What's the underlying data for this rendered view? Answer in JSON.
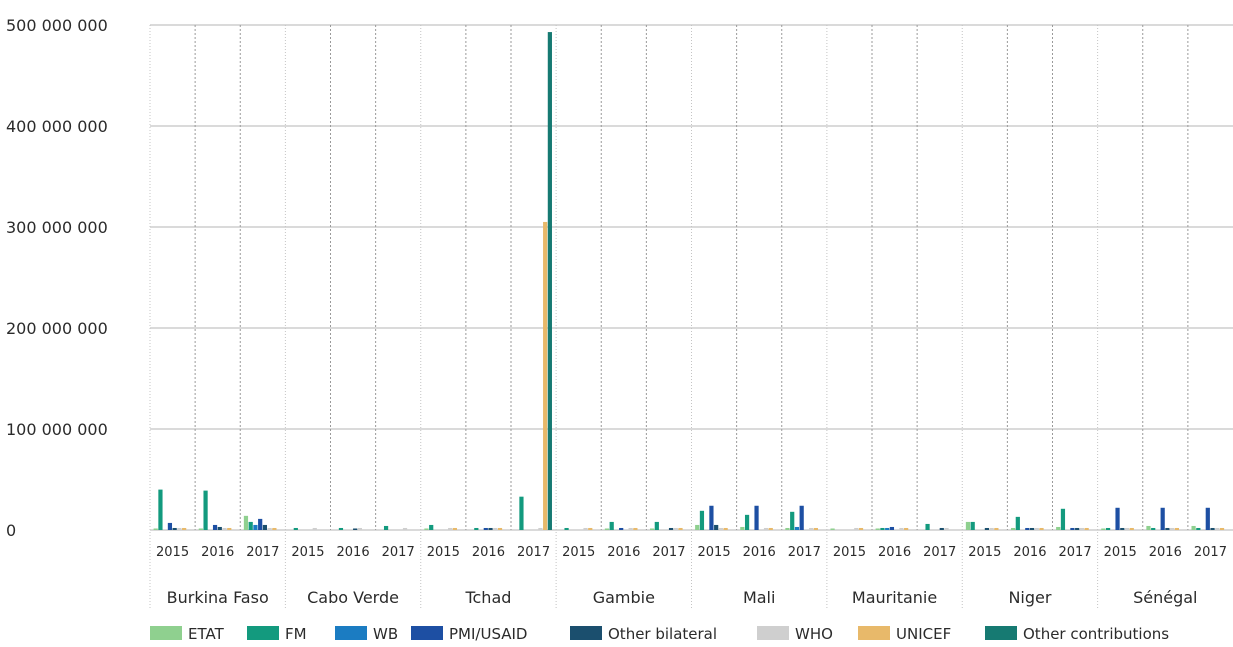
{
  "colors": {
    "grid_major": "#b5b5b5",
    "grid_dotted": "#9a9a9a",
    "text": "#2b2b2b"
  },
  "chart_data": {
    "type": "bar",
    "title": "",
    "xlabel": "",
    "ylabel": "",
    "ylim": [
      0,
      500000000
    ],
    "ytick_values": [
      0,
      100000000,
      200000000,
      300000000,
      400000000,
      500000000
    ],
    "ytick_labels": [
      "0",
      "100 000 000",
      "200 000 000",
      "300 000 000",
      "400 000 000",
      "500 000 000"
    ],
    "grid": true,
    "legend_position": "bottom",
    "countries": [
      "Burkina Faso",
      "Cabo Verde",
      "Tchad",
      "Gambie",
      "Mali",
      "Mauritanie",
      "Niger",
      "Sénégal"
    ],
    "years": [
      "2015",
      "2016",
      "2017"
    ],
    "series": [
      {
        "name": "ETAT",
        "color": "#8fd08f",
        "values": [
          [
            1500000,
            1500000,
            14000000
          ],
          [
            0,
            0,
            0
          ],
          [
            1500000,
            0,
            0
          ],
          [
            0,
            1500000,
            1500000
          ],
          [
            5000000,
            3000000,
            2000000
          ],
          [
            1500000,
            1500000,
            0
          ],
          [
            8000000,
            2000000,
            3000000
          ],
          [
            1500000,
            4000000,
            4000000
          ]
        ]
      },
      {
        "name": "FM",
        "color": "#139a7e",
        "values": [
          [
            40000000,
            39000000,
            8000000
          ],
          [
            2000000,
            2000000,
            4000000
          ],
          [
            5000000,
            2000000,
            33000000
          ],
          [
            2000000,
            8000000,
            8000000
          ],
          [
            19000000,
            15000000,
            18000000
          ],
          [
            0,
            2000000,
            6000000
          ],
          [
            8000000,
            13000000,
            21000000
          ],
          [
            2000000,
            2000000,
            2000000
          ]
        ]
      },
      {
        "name": "WB",
        "color": "#1b7cc2",
        "values": [
          [
            0,
            0,
            5000000
          ],
          [
            0,
            0,
            0
          ],
          [
            0,
            0,
            0
          ],
          [
            0,
            0,
            0
          ],
          [
            0,
            0,
            3000000
          ],
          [
            0,
            2000000,
            0
          ],
          [
            0,
            0,
            0
          ],
          [
            0,
            0,
            0
          ]
        ]
      },
      {
        "name": "PMI/USAID",
        "color": "#1d4fa3",
        "values": [
          [
            7000000,
            5000000,
            11000000
          ],
          [
            0,
            0,
            0
          ],
          [
            0,
            2000000,
            0
          ],
          [
            0,
            2000000,
            0
          ],
          [
            24000000,
            24000000,
            24000000
          ],
          [
            0,
            3000000,
            0
          ],
          [
            0,
            2000000,
            2000000
          ],
          [
            22000000,
            22000000,
            22000000
          ]
        ]
      },
      {
        "name": "Other bilateral",
        "color": "#1b4f6e",
        "values": [
          [
            2000000,
            3000000,
            5000000
          ],
          [
            0,
            1500000,
            0
          ],
          [
            0,
            2000000,
            0
          ],
          [
            0,
            0,
            2000000
          ],
          [
            5000000,
            0,
            0
          ],
          [
            0,
            0,
            2000000
          ],
          [
            2000000,
            2000000,
            2000000
          ],
          [
            2000000,
            2000000,
            2000000
          ]
        ]
      },
      {
        "name": "WHO",
        "color": "#cfcfcf",
        "values": [
          [
            2000000,
            2000000,
            2000000
          ],
          [
            2000000,
            2000000,
            2000000
          ],
          [
            2000000,
            2000000,
            2000000
          ],
          [
            2000000,
            2000000,
            2000000
          ],
          [
            2000000,
            2000000,
            2000000
          ],
          [
            2000000,
            2000000,
            2000000
          ],
          [
            2000000,
            2000000,
            2000000
          ],
          [
            2000000,
            2000000,
            2000000
          ]
        ]
      },
      {
        "name": "UNICEF",
        "color": "#e8b96a",
        "values": [
          [
            2000000,
            2000000,
            2000000
          ],
          [
            0,
            0,
            0
          ],
          [
            2000000,
            2000000,
            305000000
          ],
          [
            2000000,
            2000000,
            2000000
          ],
          [
            2000000,
            2000000,
            2000000
          ],
          [
            2000000,
            2000000,
            0
          ],
          [
            2000000,
            2000000,
            2000000
          ],
          [
            2000000,
            2000000,
            2000000
          ]
        ]
      },
      {
        "name": "Other contributions",
        "color": "#167a72",
        "values": [
          [
            0,
            0,
            0
          ],
          [
            0,
            0,
            0
          ],
          [
            0,
            0,
            493000000
          ],
          [
            0,
            0,
            0
          ],
          [
            0,
            0,
            0
          ],
          [
            0,
            0,
            0
          ],
          [
            0,
            0,
            0
          ],
          [
            0,
            0,
            0
          ]
        ]
      }
    ]
  }
}
